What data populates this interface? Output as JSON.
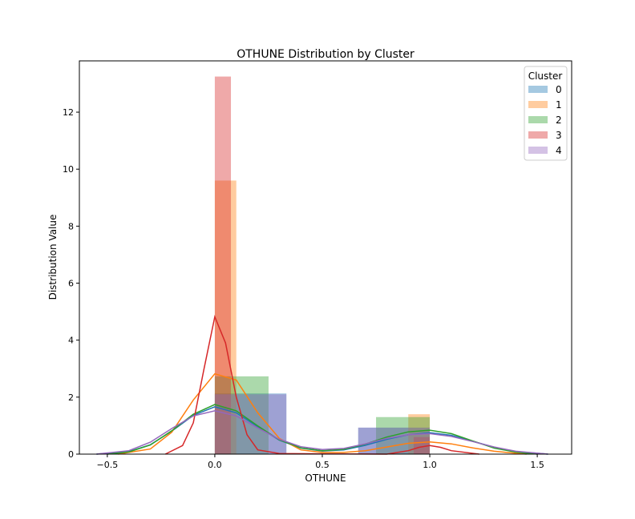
{
  "chart_data": {
    "type": "bar",
    "title": "OTHUNE Distribution by Cluster",
    "xlabel": "OTHUNE",
    "ylabel": "Distribution Value",
    "xlim": [
      -0.63,
      1.66
    ],
    "ylim": [
      0,
      13.8
    ],
    "xticks": [
      -0.5,
      0.0,
      0.5,
      1.0,
      1.5
    ],
    "xtick_labels": [
      "−0.5",
      "0.0",
      "0.5",
      "1.0",
      "1.5"
    ],
    "yticks": [
      0,
      2,
      4,
      6,
      8,
      10,
      12
    ],
    "ytick_labels": [
      "0",
      "2",
      "4",
      "6",
      "8",
      "10",
      "12"
    ],
    "legend": {
      "title": "Cluster",
      "position": "top-right"
    },
    "series": [
      {
        "name": "0",
        "color": "#1f77b4",
        "bins": [
          [
            0.0,
            0.333,
            2.13
          ],
          [
            0.667,
            1.0,
            0.93
          ]
        ],
        "kde": [
          [
            -0.55,
            0.0
          ],
          [
            -0.4,
            0.09
          ],
          [
            -0.3,
            0.33
          ],
          [
            -0.2,
            0.81
          ],
          [
            -0.1,
            1.36
          ],
          [
            0.0,
            1.66
          ],
          [
            0.1,
            1.45
          ],
          [
            0.2,
            0.96
          ],
          [
            0.3,
            0.49
          ],
          [
            0.4,
            0.21
          ],
          [
            0.5,
            0.11
          ],
          [
            0.6,
            0.15
          ],
          [
            0.7,
            0.31
          ],
          [
            0.8,
            0.52
          ],
          [
            0.9,
            0.68
          ],
          [
            1.0,
            0.75
          ],
          [
            1.1,
            0.66
          ],
          [
            1.2,
            0.45
          ],
          [
            1.3,
            0.24
          ],
          [
            1.4,
            0.09
          ],
          [
            1.55,
            0.0
          ]
        ]
      },
      {
        "name": "1",
        "color": "#ff7f0e",
        "bins": [
          [
            0.0,
            0.1,
            9.6
          ],
          [
            0.9,
            1.0,
            1.4
          ]
        ],
        "kde": [
          [
            -0.45,
            0.0
          ],
          [
            -0.3,
            0.18
          ],
          [
            -0.2,
            0.77
          ],
          [
            -0.1,
            1.9
          ],
          [
            0.0,
            2.82
          ],
          [
            0.1,
            2.6
          ],
          [
            0.2,
            1.45
          ],
          [
            0.3,
            0.55
          ],
          [
            0.4,
            0.15
          ],
          [
            0.5,
            0.06
          ],
          [
            0.6,
            0.06
          ],
          [
            0.7,
            0.12
          ],
          [
            0.8,
            0.25
          ],
          [
            0.9,
            0.38
          ],
          [
            1.0,
            0.43
          ],
          [
            1.1,
            0.36
          ],
          [
            1.2,
            0.22
          ],
          [
            1.3,
            0.1
          ],
          [
            1.4,
            0.03
          ],
          [
            1.45,
            0.0
          ]
        ]
      },
      {
        "name": "2",
        "color": "#2ca02c",
        "bins": [
          [
            0.0,
            0.25,
            2.73
          ],
          [
            0.75,
            1.0,
            1.3
          ]
        ],
        "kde": [
          [
            -0.5,
            0.0
          ],
          [
            -0.4,
            0.08
          ],
          [
            -0.3,
            0.32
          ],
          [
            -0.2,
            0.82
          ],
          [
            -0.1,
            1.4
          ],
          [
            0.0,
            1.74
          ],
          [
            0.1,
            1.52
          ],
          [
            0.2,
            0.99
          ],
          [
            0.3,
            0.5
          ],
          [
            0.4,
            0.22
          ],
          [
            0.5,
            0.12
          ],
          [
            0.6,
            0.17
          ],
          [
            0.7,
            0.35
          ],
          [
            0.8,
            0.6
          ],
          [
            0.9,
            0.78
          ],
          [
            1.0,
            0.84
          ],
          [
            1.1,
            0.72
          ],
          [
            1.2,
            0.46
          ],
          [
            1.3,
            0.21
          ],
          [
            1.4,
            0.07
          ],
          [
            1.5,
            0.0
          ]
        ]
      },
      {
        "name": "3",
        "color": "#d62728",
        "bins": [
          [
            0.0,
            0.075,
            13.25
          ],
          [
            0.925,
            1.0,
            0.6
          ]
        ],
        "kde": [
          [
            -0.23,
            0.0
          ],
          [
            -0.15,
            0.3
          ],
          [
            -0.1,
            1.1
          ],
          [
            -0.05,
            3.0
          ],
          [
            0.0,
            4.82
          ],
          [
            0.05,
            3.9
          ],
          [
            0.1,
            2.0
          ],
          [
            0.15,
            0.68
          ],
          [
            0.2,
            0.15
          ],
          [
            0.3,
            0.02
          ],
          [
            0.8,
            0.0
          ],
          [
            0.9,
            0.12
          ],
          [
            0.95,
            0.24
          ],
          [
            1.0,
            0.3
          ],
          [
            1.05,
            0.24
          ],
          [
            1.1,
            0.12
          ],
          [
            1.23,
            0.0
          ]
        ]
      },
      {
        "name": "4",
        "color": "#9467bd",
        "bins": [
          [
            0.0,
            0.333,
            2.1
          ],
          [
            0.667,
            1.0,
            0.93
          ]
        ],
        "kde": [
          [
            -0.55,
            0.0
          ],
          [
            -0.4,
            0.12
          ],
          [
            -0.3,
            0.42
          ],
          [
            -0.2,
            0.9
          ],
          [
            -0.1,
            1.34
          ],
          [
            0.0,
            1.52
          ],
          [
            0.1,
            1.34
          ],
          [
            0.2,
            0.92
          ],
          [
            0.3,
            0.52
          ],
          [
            0.4,
            0.26
          ],
          [
            0.5,
            0.16
          ],
          [
            0.6,
            0.2
          ],
          [
            0.7,
            0.36
          ],
          [
            0.8,
            0.55
          ],
          [
            0.9,
            0.68
          ],
          [
            1.0,
            0.72
          ],
          [
            1.1,
            0.62
          ],
          [
            1.2,
            0.44
          ],
          [
            1.3,
            0.25
          ],
          [
            1.4,
            0.1
          ],
          [
            1.55,
            0.0
          ]
        ]
      }
    ]
  }
}
